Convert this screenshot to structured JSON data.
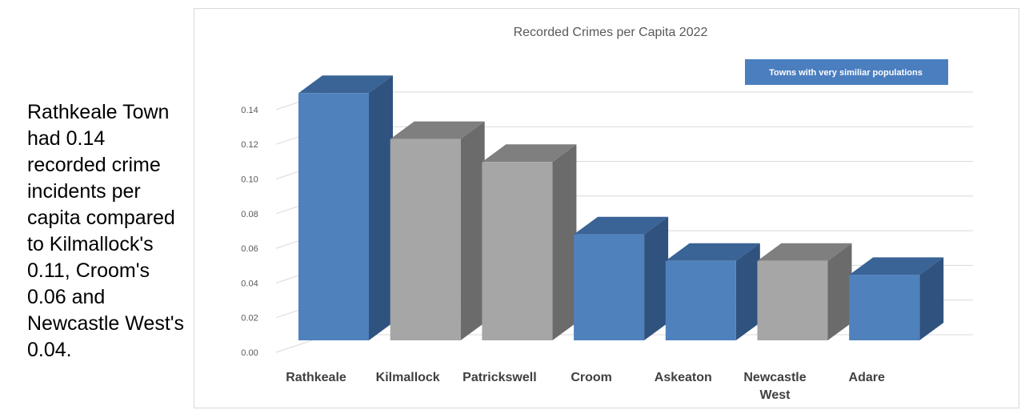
{
  "side_text": "Rathkeale Town had 0.14 recorded crime incidents per capita compared to Kilmallock's 0.11, Croom's 0.06 and Newcastle West's 0.04.",
  "chart_data": {
    "type": "bar",
    "title": "Recorded Crimes per Capita 2022",
    "categories": [
      "Rathkeale",
      "Kilmallock",
      "Patrickswell",
      "Croom",
      "Askeaton",
      "Newcastle West",
      "Adare"
    ],
    "category_lines": [
      [
        "Rathkeale"
      ],
      [
        "Kilmallock"
      ],
      [
        "Patrickswell"
      ],
      [
        "Croom"
      ],
      [
        "Askeaton"
      ],
      [
        "Newcastle",
        "West"
      ],
      [
        "Adare"
      ]
    ],
    "values": [
      0.14,
      0.114,
      0.101,
      0.06,
      0.045,
      0.045,
      0.037
    ],
    "highlight": [
      true,
      false,
      false,
      true,
      true,
      false,
      true
    ],
    "ylim": [
      0,
      0.14
    ],
    "yticks": [
      "0.00",
      "0.02",
      "0.04",
      "0.06",
      "0.08",
      "0.10",
      "0.12",
      "0.14"
    ],
    "annotation": "Towns with very similiar populations",
    "grid": true,
    "style": "3d-column",
    "colors": {
      "highlight_front": "#4F81BD",
      "highlight_top": "#3A6396",
      "highlight_side": "#2F527E",
      "normal_front": "#A6A6A6",
      "normal_top": "#7F7F7F",
      "normal_side": "#6B6B6B",
      "grid": "#D9D9D9",
      "annotation_bg": "#4A7EBF"
    }
  }
}
